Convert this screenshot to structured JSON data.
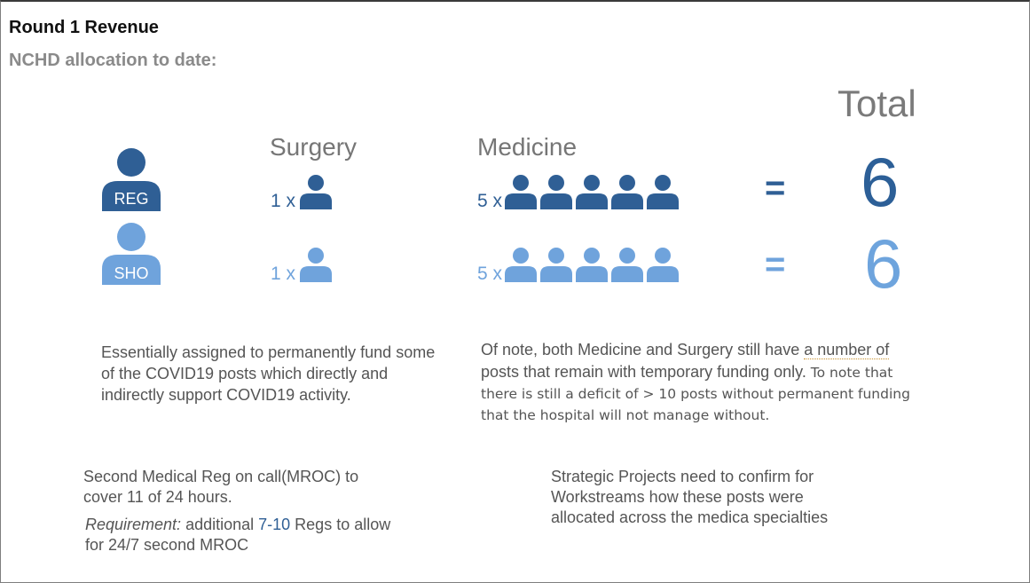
{
  "header": {
    "title": "Round 1 Revenue",
    "subtitle": "NCHD allocation to date:"
  },
  "columns": {
    "surgery": "Surgery",
    "medicine": "Medicine",
    "total": "Total"
  },
  "roles": [
    {
      "label": "REG",
      "color": "#2f5f95",
      "surgery_multiplier": "1 x",
      "surgery_count": 1,
      "medicine_multiplier": "5 x",
      "medicine_count": 5,
      "equals": "=",
      "total": "6"
    },
    {
      "label": "SHO",
      "color": "#6fa3dc",
      "surgery_multiplier": "1 x",
      "surgery_count": 1,
      "medicine_multiplier": "5 x",
      "medicine_count": 5,
      "equals": "=",
      "total": "6"
    }
  ],
  "notes": {
    "left": "Essentially assigned to permanently fund some of the COVID19 posts which directly and indirectly support COVID19 activity.",
    "right_part1": "Of note, both Medicine and Surgery still have ",
    "right_underlined": "a number of",
    "right_part2": " posts that remain with temporary funding only.",
    "right_part3": " To note that there is still a deficit of > 10 posts without permanent funding that the hospital will not manage without."
  },
  "bottom_left": {
    "line1": "Second Medical Reg on call(MROC) to cover 11 of 24 hours.",
    "req_label": "Requirement:",
    "req_text_1": " additional ",
    "req_highlight": "7-10",
    "req_text_2": " Regs to allow for 24/7 second MROC"
  },
  "bottom_right": "Strategic Projects need to confirm for Workstreams how these posts were allocated across the medica specialties",
  "icons": {
    "role_icon": "person-badge-icon",
    "person_icon": "person-icon"
  }
}
